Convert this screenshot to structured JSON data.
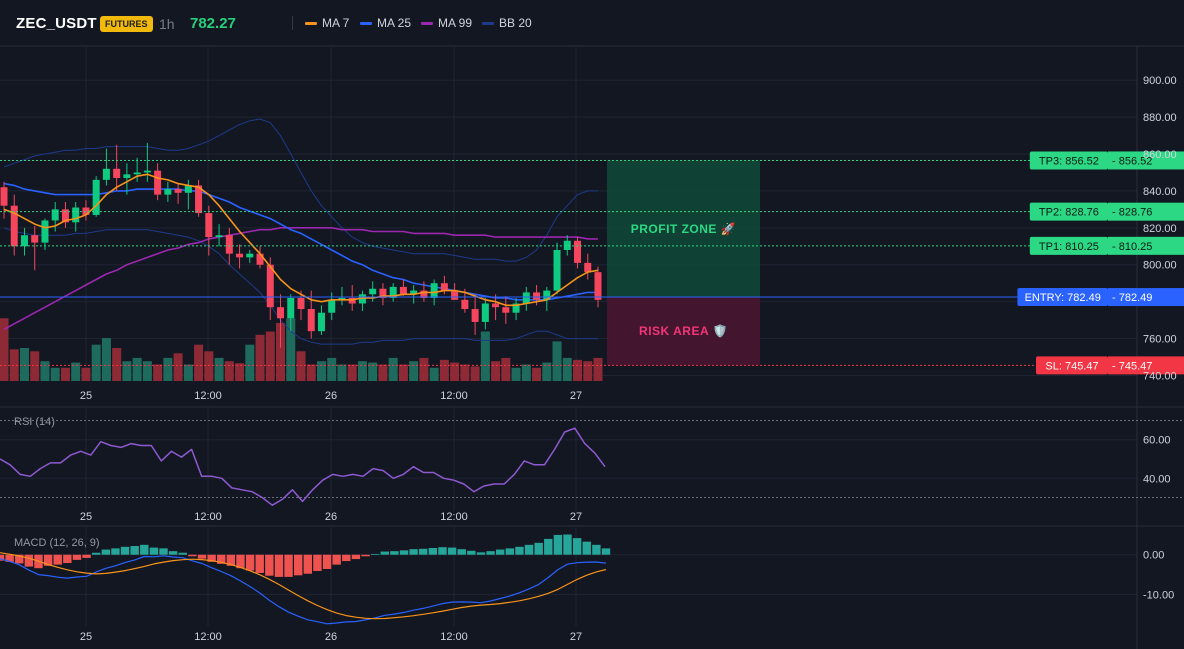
{
  "header": {
    "symbol": "ZEC_USDT",
    "badge": "FUTURES",
    "timeframe": "1h",
    "last_price": "782.27",
    "legend": [
      {
        "label": "MA 7",
        "color": "#f7931a"
      },
      {
        "label": "MA 25",
        "color": "#2962ff"
      },
      {
        "label": "MA 99",
        "color": "#9c27b0"
      },
      {
        "label": "BB 20",
        "color": "#1e3a8a"
      }
    ]
  },
  "chart_data": [
    {
      "type": "candlestick",
      "x_tick_labels": [
        "25",
        "12:00",
        "26",
        "12:00",
        "27"
      ],
      "y_ticks": [
        740,
        760,
        780,
        800,
        820,
        840,
        860,
        880,
        900
      ],
      "y_tick_labels": [
        "740.00",
        "760.00",
        "800.00",
        "820.00",
        "840.00",
        "860.00",
        "880.00",
        "900.00"
      ],
      "ylim": [
        737,
        918
      ],
      "candles": [
        [
          842,
          845,
          825,
          832
        ],
        [
          832,
          838,
          805,
          810
        ],
        [
          810,
          820,
          805,
          816
        ],
        [
          816,
          821,
          797,
          812
        ],
        [
          812,
          825,
          808,
          824
        ],
        [
          824,
          834,
          818,
          830
        ],
        [
          830,
          834,
          820,
          823
        ],
        [
          823,
          834,
          818,
          831
        ],
        [
          831,
          835,
          824,
          827
        ],
        [
          827,
          848,
          826,
          846
        ],
        [
          846,
          863,
          843,
          852
        ],
        [
          852,
          865,
          840,
          847
        ],
        [
          847,
          855,
          838,
          849
        ],
        [
          849,
          858,
          845,
          850
        ],
        [
          850,
          866,
          845,
          851
        ],
        [
          851,
          855,
          835,
          838
        ],
        [
          838,
          845,
          834,
          841
        ],
        [
          841,
          844,
          833,
          839
        ],
        [
          839,
          846,
          830,
          843
        ],
        [
          843,
          846,
          826,
          828
        ],
        [
          828,
          832,
          805,
          815
        ],
        [
          815,
          822,
          810,
          816
        ],
        [
          816,
          820,
          800,
          806
        ],
        [
          806,
          811,
          798,
          804
        ],
        [
          804,
          808,
          801,
          806
        ],
        [
          806,
          810,
          798,
          800
        ],
        [
          800,
          804,
          770,
          777
        ],
        [
          777,
          784,
          755,
          771
        ],
        [
          771,
          784,
          764,
          782
        ],
        [
          782,
          786,
          770,
          776
        ],
        [
          776,
          786,
          760,
          764
        ],
        [
          764,
          778,
          762,
          774
        ],
        [
          774,
          785,
          770,
          781
        ],
        [
          781,
          788,
          778,
          782
        ],
        [
          782,
          789,
          775,
          779
        ],
        [
          779,
          786,
          775,
          784
        ],
        [
          784,
          791,
          780,
          787
        ],
        [
          787,
          790,
          778,
          782
        ],
        [
          782,
          790,
          780,
          788
        ],
        [
          788,
          792,
          783,
          784
        ],
        [
          784,
          789,
          779,
          786
        ],
        [
          786,
          791,
          780,
          782
        ],
        [
          782,
          792,
          778,
          790
        ],
        [
          790,
          794,
          784,
          786
        ],
        [
          786,
          790,
          781,
          781
        ],
        [
          781,
          787,
          774,
          776
        ],
        [
          776,
          784,
          762,
          769
        ],
        [
          769,
          782,
          765,
          779
        ],
        [
          779,
          784,
          770,
          777
        ],
        [
          777,
          783,
          768,
          774
        ],
        [
          774,
          782,
          770,
          779
        ],
        [
          779,
          788,
          775,
          785
        ],
        [
          785,
          789,
          778,
          781
        ],
        [
          781,
          788,
          775,
          786
        ],
        [
          786,
          812,
          784,
          808
        ],
        [
          808,
          816,
          805,
          813
        ],
        [
          813,
          815,
          798,
          801
        ],
        [
          801,
          806,
          792,
          796
        ],
        [
          796,
          799,
          777,
          781
        ]
      ],
      "ma7": [
        830,
        828,
        825,
        822,
        820,
        821,
        824,
        825,
        827,
        832,
        838,
        842,
        845,
        848,
        849,
        847,
        846,
        844,
        843,
        842,
        838,
        832,
        825,
        818,
        812,
        806,
        799,
        792,
        787,
        784,
        781,
        780,
        781,
        781,
        781,
        782,
        782,
        783,
        783,
        784,
        784,
        785,
        785,
        786,
        786,
        785,
        783,
        781,
        780,
        778,
        778,
        779,
        780,
        781,
        785,
        789,
        793,
        796,
        797
      ],
      "ma25": [
        844,
        843,
        841,
        840,
        839,
        838,
        838,
        838,
        838,
        838,
        839,
        840,
        840,
        841,
        841,
        841,
        841,
        841,
        840,
        840,
        838,
        836,
        834,
        831,
        829,
        827,
        825,
        822,
        819,
        817,
        814,
        811,
        808,
        805,
        802,
        800,
        797,
        795,
        793,
        792,
        790,
        789,
        788,
        787,
        786,
        785,
        784,
        783,
        782,
        782,
        781,
        781,
        781,
        781,
        782,
        783,
        784,
        785,
        785
      ],
      "ma99": [
        765,
        768,
        771,
        774,
        777,
        780,
        783,
        786,
        789,
        792,
        795,
        797,
        800,
        802,
        804,
        806,
        808,
        809,
        811,
        812,
        814,
        815,
        816,
        817,
        818,
        819,
        819,
        820,
        820,
        820,
        820,
        820,
        820,
        819,
        819,
        819,
        818,
        818,
        818,
        818,
        817,
        817,
        817,
        817,
        816,
        816,
        816,
        816,
        815,
        815,
        815,
        815,
        815,
        815,
        815,
        815,
        815,
        814,
        814
      ],
      "bb_upper": [
        853,
        855,
        857,
        859,
        860,
        861,
        862,
        862,
        863,
        863,
        864,
        864,
        864,
        864,
        864,
        863,
        862,
        862,
        863,
        865,
        867,
        870,
        873,
        876,
        878,
        879,
        877,
        870,
        860,
        850,
        840,
        832,
        826,
        820,
        815,
        812,
        810,
        809,
        808,
        807,
        806,
        806,
        806,
        806,
        805,
        804,
        803,
        803,
        803,
        802,
        802,
        804,
        808,
        816,
        826,
        832,
        838,
        840,
        840
      ],
      "bb_lower": [
        820,
        818,
        817,
        816,
        816,
        816,
        816,
        817,
        817,
        818,
        819,
        819,
        819,
        819,
        819,
        818,
        817,
        816,
        815,
        813,
        810,
        806,
        800,
        795,
        790,
        785,
        778,
        770,
        764,
        760,
        758,
        757,
        757,
        757,
        757,
        758,
        758,
        759,
        759,
        759,
        760,
        760,
        760,
        760,
        760,
        760,
        759,
        759,
        759,
        759,
        760,
        762,
        764,
        764,
        762,
        760,
        760,
        760,
        760
      ],
      "volume": [
        0.95,
        0.48,
        0.5,
        0.45,
        0.3,
        0.2,
        0.2,
        0.28,
        0.2,
        0.55,
        0.65,
        0.5,
        0.3,
        0.35,
        0.3,
        0.25,
        0.35,
        0.42,
        0.25,
        0.55,
        0.45,
        0.35,
        0.3,
        0.27,
        0.55,
        0.7,
        0.75,
        0.88,
        0.95,
        0.45,
        0.25,
        0.3,
        0.35,
        0.25,
        0.25,
        0.3,
        0.28,
        0.25,
        0.35,
        0.25,
        0.3,
        0.35,
        0.2,
        0.32,
        0.28,
        0.25,
        0.22,
        0.75,
        0.3,
        0.35,
        0.2,
        0.25,
        0.2,
        0.28,
        0.6,
        0.35,
        0.32,
        0.3,
        0.35
      ],
      "levels": [
        {
          "label": "TP3: 856.52",
          "price_label": "856.52",
          "value": 856.52,
          "color": "#2cd884",
          "style": "dotted"
        },
        {
          "label": "TP2: 828.76",
          "price_label": "828.76",
          "value": 828.76,
          "color": "#2cd884",
          "style": "dotted"
        },
        {
          "label": "TP1: 810.25",
          "price_label": "810.25",
          "value": 810.25,
          "color": "#2cd884",
          "style": "dotted"
        },
        {
          "label": "ENTRY: 782.49",
          "price_label": "782.49",
          "value": 782.49,
          "color": "#2962ff",
          "style": "solid"
        },
        {
          "label": "SL: 745.47",
          "price_label": "745.47",
          "value": 745.47,
          "color": "#f23645",
          "style": "dotted"
        }
      ],
      "zones": {
        "profit": {
          "label": "PROFIT ZONE 🚀",
          "from": 782.49,
          "to": 856.52
        },
        "risk": {
          "label": "RISK AREA 🛡️",
          "from": 745.47,
          "to": 782.49
        }
      }
    },
    {
      "type": "line",
      "title": "RSI (14)",
      "y_ticks": [
        40,
        60
      ],
      "y_tick_labels": [
        "40.00",
        "60.00"
      ],
      "ylim": [
        23,
        77
      ],
      "guides": [
        70,
        30
      ],
      "x_tick_labels": [
        "25",
        "12:00",
        "26",
        "12:00",
        "27"
      ],
      "values": [
        50,
        47,
        42,
        41,
        45,
        48,
        48,
        52,
        54,
        52,
        59,
        57,
        56,
        58,
        57,
        57,
        49,
        54,
        51,
        55,
        41,
        41,
        40,
        35,
        34,
        33,
        30,
        26,
        29,
        34,
        28,
        34,
        39,
        42,
        41,
        42,
        41,
        45,
        44,
        40,
        42,
        46,
        43,
        43,
        40,
        39,
        37,
        33,
        36,
        37,
        37,
        42,
        49,
        47,
        47,
        55,
        64,
        66,
        58,
        53,
        46
      ]
    },
    {
      "type": "bar+line",
      "title": "MACD (12, 26, 9)",
      "y_ticks": [
        0,
        -10
      ],
      "y_tick_labels": [
        "0.00",
        "-10.00"
      ],
      "ylim": [
        -18,
        7
      ],
      "x_tick_labels": [
        "25",
        "12:00",
        "26",
        "12:00",
        "27"
      ],
      "histogram": [
        -1.5,
        -1.8,
        -2.2,
        -3,
        -3.4,
        -2.8,
        -2.5,
        -2.1,
        -1.3,
        -0.8,
        0.5,
        1.3,
        1.6,
        2.0,
        2.2,
        2.5,
        1.8,
        1.6,
        0.9,
        0.5,
        -0.4,
        -1.0,
        -1.8,
        -2.3,
        -2.8,
        -3.4,
        -4.0,
        -4.6,
        -5.3,
        -5.6,
        -5.6,
        -5.2,
        -4.8,
        -4.1,
        -3.6,
        -2.5,
        -1.6,
        -1.1,
        -0.4,
        0.2,
        0.8,
        0.9,
        1.1,
        1.4,
        1.5,
        1.7,
        1.9,
        1.8,
        1.4,
        1.0,
        0.6,
        0.9,
        1.3,
        1.6,
        2.0,
        2.5,
        3.0,
        4.0,
        5.0,
        5.1,
        4.2,
        3.3,
        2.5,
        1.6
      ]
    }
  ],
  "axis_tag": {
    "value": "782.49"
  }
}
